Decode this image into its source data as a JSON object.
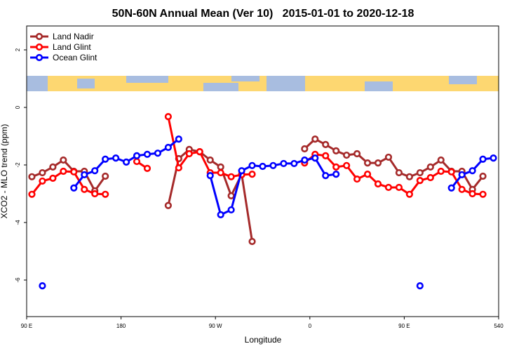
{
  "chart_data": {
    "type": "line",
    "title": "50N-60N Annual Mean (Ver 10)   2015-01-01 to 2020-12-18",
    "x_label": "Longitude",
    "y_label": "XCO2 - MLO trend (ppm)",
    "legend": "top-left",
    "xlim": [
      90,
      540
    ],
    "ylim": [
      -7.27,
      2.83
    ],
    "xticks": [
      {
        "value": 90,
        "label": "90 E"
      },
      180,
      {
        "value": 270,
        "label": "90 W"
      },
      {
        "value": 360,
        "label": "0"
      },
      {
        "value": 450,
        "label": "90 E"
      },
      540
    ],
    "yticks": [
      -6,
      -4,
      -2,
      0,
      2
    ],
    "x": [
      95,
      105,
      115,
      125,
      135,
      145,
      155,
      165,
      175,
      185,
      195,
      205,
      215,
      225,
      235,
      245,
      255,
      265,
      275,
      285,
      295,
      305,
      315,
      325,
      335,
      345,
      355,
      365,
      375,
      385,
      395,
      405,
      415,
      425,
      435,
      445,
      455,
      465,
      475,
      485,
      495,
      505,
      515,
      525,
      535
    ],
    "series": [
      {
        "name": "Land Nadir",
        "color": "#a52a2a",
        "values": [
          -2.41,
          -2.27,
          -2.07,
          -1.83,
          -2.22,
          -2.22,
          -2.9,
          -2.39,
          null,
          null,
          null,
          null,
          null,
          -3.41,
          -1.78,
          -1.46,
          -1.54,
          -1.83,
          -2.07,
          -3.07,
          -2.32,
          -4.66,
          null,
          null,
          null,
          null,
          -1.44,
          -1.1,
          -1.29,
          -1.51,
          -1.66,
          -1.61,
          -1.93,
          -1.93,
          -1.73,
          -2.27,
          -2.41,
          -2.27,
          -2.07,
          -1.83,
          -2.22,
          -2.22,
          -2.85,
          -2.39,
          null
        ]
      },
      {
        "name": "Land Glint",
        "color": "#ff0000",
        "values": [
          -3.02,
          -2.56,
          -2.46,
          -2.22,
          -2.24,
          -2.85,
          -3.0,
          -3.02,
          null,
          null,
          -1.88,
          -2.12,
          null,
          -0.32,
          -2.1,
          -1.61,
          -1.54,
          -2.27,
          -2.27,
          -2.41,
          -2.34,
          -2.32,
          null,
          null,
          null,
          null,
          -1.93,
          -1.63,
          -1.68,
          -2.07,
          -2.02,
          -2.49,
          -2.32,
          -2.66,
          -2.78,
          -2.78,
          -3.02,
          -2.54,
          -2.44,
          -2.22,
          -2.24,
          -2.85,
          -3.0,
          -3.02,
          null
        ]
      },
      {
        "name": "Ocean Glint",
        "color": "#0000ff",
        "values": [
          null,
          -6.2,
          null,
          null,
          -2.8,
          -2.34,
          -2.2,
          -1.8,
          -1.76,
          -1.9,
          -1.68,
          -1.63,
          -1.59,
          -1.39,
          -1.1,
          null,
          null,
          -2.37,
          -3.73,
          -3.56,
          -2.2,
          -2.02,
          -2.05,
          -2.02,
          -1.95,
          -1.95,
          -1.83,
          -1.76,
          -2.37,
          -2.32,
          null,
          null,
          null,
          null,
          null,
          null,
          null,
          -6.2,
          null,
          null,
          -2.8,
          -2.34,
          -2.2,
          -1.8,
          -1.76
        ]
      }
    ]
  }
}
